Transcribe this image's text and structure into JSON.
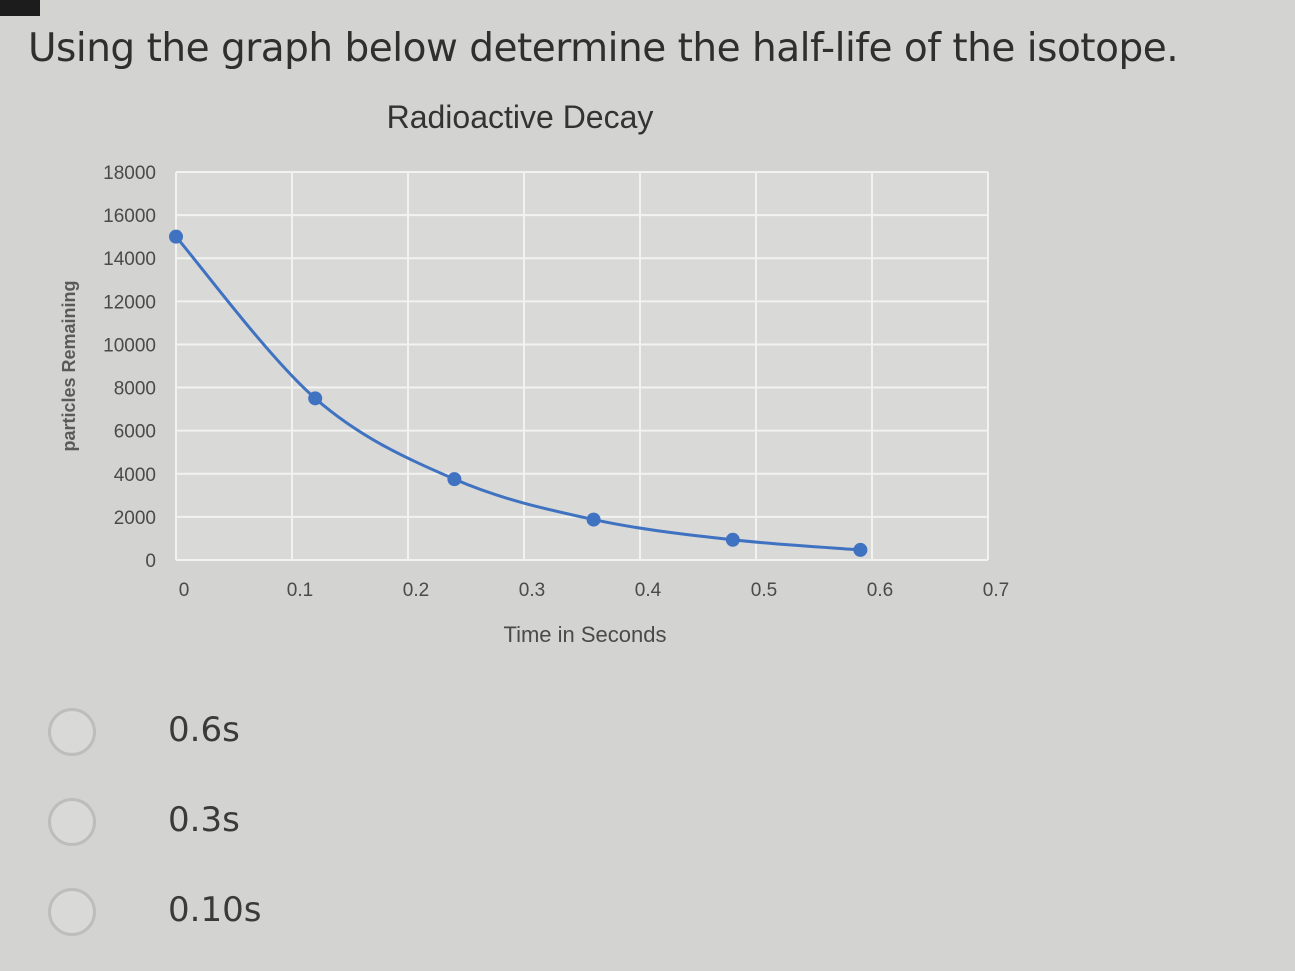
{
  "question": "Using the graph below determine the half-life of the isotope.",
  "chart_data": {
    "type": "line",
    "title": "Radioactive Decay",
    "xlabel": "Time in Seconds",
    "ylabel": "particles Remaining",
    "x_ticks": [
      "0",
      "0.1",
      "0.2",
      "0.3",
      "0.4",
      "0.5",
      "0.6",
      "0.7"
    ],
    "y_ticks": [
      "0",
      "2000",
      "4000",
      "6000",
      "8000",
      "10000",
      "12000",
      "14000",
      "16000",
      "18000"
    ],
    "xlim": [
      0,
      0.7
    ],
    "ylim": [
      0,
      18000
    ],
    "grid": true,
    "legend": "none",
    "line_color": "#3f72c1",
    "series": [
      {
        "x": [
          0,
          0.12,
          0.24,
          0.36,
          0.48,
          0.59
        ],
        "y": [
          15000,
          7500,
          3750,
          1875,
          938,
          469
        ]
      }
    ]
  },
  "options": [
    {
      "label": "0.6s"
    },
    {
      "label": "0.3s"
    },
    {
      "label": "0.10s"
    }
  ]
}
